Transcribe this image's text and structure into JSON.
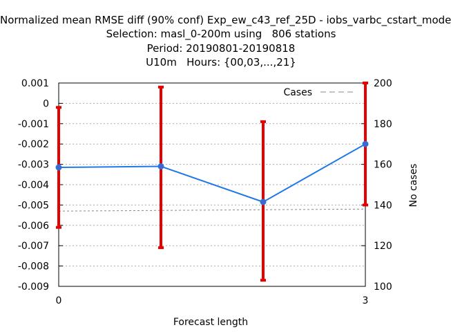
{
  "chart_data": {
    "type": "line",
    "title": [
      "Normalized mean RMSE diff (90% conf) Exp_ew_c43_ref_25D - iobs_varbc_cstart_mode",
      "Selection: masl_0-200m using   806 stations",
      "Period: 20190801-20190818",
      "U10m   Hours: {00,03,...,21}"
    ],
    "xlabel": "Forecast length",
    "ylabel": "",
    "y2label": "No cases",
    "x_ticks": [
      0,
      3
    ],
    "xlim": [
      0,
      3
    ],
    "ylim": [
      -0.009,
      0.001
    ],
    "y_ticks": [
      0.001,
      0,
      -0.001,
      -0.002,
      -0.003,
      -0.004,
      -0.005,
      -0.006,
      -0.007,
      -0.008,
      -0.009
    ],
    "y_tick_labels": [
      "0.001",
      "0",
      "-0.001",
      "-0.002",
      "-0.003",
      "-0.004",
      "-0.005",
      "-0.006",
      "-0.007",
      "-0.008",
      "-0.009"
    ],
    "y2lim": [
      100,
      200
    ],
    "y2_ticks": [
      200,
      180,
      160,
      140,
      120,
      100
    ],
    "y2_tick_labels": [
      "200",
      "180",
      "160",
      "140",
      "120",
      "100"
    ],
    "grid": true,
    "legend_placement": "top-right",
    "series": [
      {
        "x": [
          0,
          1,
          2,
          3
        ],
        "values": [
          -0.00315,
          -0.0031,
          -0.00485,
          -0.002
        ],
        "err_low": [
          -0.0061,
          -0.0071,
          -0.0087,
          -0.005
        ],
        "err_high": [
          -0.0002,
          0.0008,
          -0.0009,
          0.001
        ],
        "axis": "left",
        "color": "#1e78e6",
        "error_color": "#e60000"
      },
      {
        "name": "Cases",
        "x": [
          0,
          3
        ],
        "values": [
          137,
          138
        ],
        "axis": "right",
        "color": "#888888",
        "style": "dashed"
      }
    ]
  }
}
